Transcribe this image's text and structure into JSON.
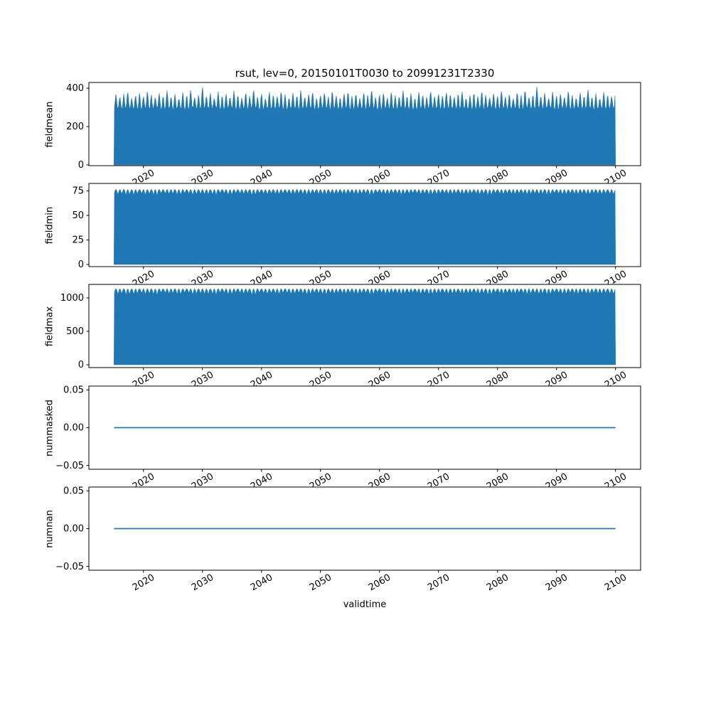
{
  "figure": {
    "title": "rsut, lev=0, 20150101T0030 to 20991231T2330",
    "xlabel": "validtime",
    "line_color": "#1f77b4",
    "frame_color": "#000000",
    "background": "#ffffff",
    "xlim": [
      2010.75,
      2104.25
    ],
    "x_start": 2015.0,
    "x_end": 2100.0,
    "x_ticks": [
      {
        "v": 2020,
        "label": "2020"
      },
      {
        "v": 2030,
        "label": "2030"
      },
      {
        "v": 2040,
        "label": "2040"
      },
      {
        "v": 2050,
        "label": "2050"
      },
      {
        "v": 2060,
        "label": "2060"
      },
      {
        "v": 2070,
        "label": "2070"
      },
      {
        "v": 2080,
        "label": "2080"
      },
      {
        "v": 2090,
        "label": "2090"
      },
      {
        "v": 2100,
        "label": "2100"
      }
    ]
  },
  "chart_data": [
    {
      "type": "area",
      "name": "fieldmean",
      "ylabel": "fieldmean",
      "ylim": [
        -4,
        430
      ],
      "yticks": [
        {
          "v": 0,
          "label": "0"
        },
        {
          "v": 200,
          "label": "200"
        },
        {
          "v": 400,
          "label": "400"
        }
      ],
      "fill_base": 0,
      "freq": 1.5,
      "shape": "spike",
      "sigma": 0.18,
      "annual_valleys": [
        288,
        293,
        284,
        296,
        287,
        291,
        282,
        295,
        289,
        285,
        297,
        290,
        283,
        292,
        288,
        286,
        294,
        287,
        282,
        291,
        295,
        284,
        289,
        293,
        285,
        297,
        287,
        283,
        290,
        296,
        288,
        284,
        293,
        289,
        286,
        298,
        287,
        283,
        292,
        290,
        285,
        296,
        288,
        282,
        289,
        294,
        287,
        285,
        291,
        297,
        288,
        283,
        290,
        295,
        285,
        289,
        293,
        284,
        296,
        287,
        284,
        291,
        294,
        286,
        288,
        297,
        287,
        283,
        290,
        292,
        288,
        284,
        292,
        295,
        286,
        289,
        281,
        293,
        290,
        285,
        296,
        288,
        291,
        284,
        294
      ],
      "annual_peaks": [
        368,
        355,
        372,
        381,
        349,
        363,
        377,
        358,
        385,
        366,
        352,
        374,
        361,
        388,
        357,
        370,
        346,
        379,
        364,
        391,
        353,
        367,
        408,
        359,
        376,
        348,
        383,
        362,
        371,
        354,
        387,
        365,
        350,
        378,
        360,
        392,
        356,
        373,
        347,
        381,
        366,
        358,
        384,
        369,
        351,
        375,
        362,
        389,
        355,
        368,
        380,
        349,
        364,
        377,
        357,
        386,
        361,
        352,
        372,
        383,
        359,
        370,
        348,
        379,
        365,
        390,
        354,
        367,
        376,
        351,
        382,
        363,
        357,
        388,
        360,
        374,
        350,
        380,
        366,
        355,
        385,
        358,
        371,
        362,
        378
      ]
    },
    {
      "type": "area",
      "name": "fieldmin",
      "ylabel": "fieldmin",
      "ylim": [
        -2.2,
        82.6
      ],
      "yticks": [
        {
          "v": 0,
          "label": "0"
        },
        {
          "v": 25,
          "label": "25"
        },
        {
          "v": 50,
          "label": "50"
        },
        {
          "v": 75,
          "label": "75"
        }
      ],
      "fill_base": 0,
      "freq": 1.5,
      "shape": "arch",
      "arch_q": 1.5,
      "top": 76.5,
      "annual_dips": [
        4.5,
        5.2,
        3.8,
        6.1,
        4.2,
        5.5,
        3.5,
        5.8,
        4.8,
        4.0,
        6.3,
        4.4,
        3.7,
        5.1,
        4.6,
        3.9,
        5.9,
        4.3,
        3.6,
        5.0,
        5.6,
        4.1,
        4.7,
        5.3,
        3.8,
        6.0,
        4.2,
        3.5,
        4.9,
        5.7,
        4.4,
        3.7,
        5.2,
        4.6,
        4.0,
        6.2,
        4.3,
        3.6,
        5.1,
        4.8,
        3.9,
        5.8,
        4.5,
        3.5,
        4.7,
        5.4,
        4.2,
        4.0,
        5.0,
        6.1,
        4.4,
        3.6,
        4.9,
        5.6,
        4.1,
        4.6,
        5.3,
        3.7,
        5.9,
        4.3,
        3.8,
        5.0,
        5.5,
        4.0,
        4.5,
        6.0,
        4.2,
        3.5,
        4.8,
        5.2,
        4.3,
        3.7,
        5.1,
        5.7,
        4.1,
        4.6,
        3.4,
        5.3,
        4.7,
        3.9,
        5.8,
        4.4,
        4.9,
        3.6,
        5.5
      ]
    },
    {
      "type": "area",
      "name": "fieldmax",
      "ylabel": "fieldmax",
      "ylim": [
        -42,
        1202
      ],
      "yticks": [
        {
          "v": 0,
          "label": "0"
        },
        {
          "v": 500,
          "label": "500"
        },
        {
          "v": 1000,
          "label": "1000"
        }
      ],
      "fill_base": 0,
      "freq": 1.5,
      "shape": "arch",
      "arch_q": 1.5,
      "top": 1138,
      "annual_dips": [
        72,
        85,
        58,
        98,
        66,
        89,
        52,
        93,
        76,
        62,
        101,
        70,
        55,
        82,
        74,
        60,
        95,
        68,
        54,
        80,
        90,
        64,
        75,
        86,
        58,
        97,
        66,
        52,
        78,
        92,
        70,
        55,
        84,
        74,
        62,
        100,
        68,
        54,
        82,
        76,
        60,
        94,
        72,
        52,
        75,
        87,
        66,
        62,
        80,
        98,
        70,
        54,
        78,
        90,
        64,
        74,
        86,
        56,
        96,
        68,
        58,
        80,
        88,
        62,
        72,
        97,
        66,
        52,
        77,
        84,
        68,
        56,
        82,
        92,
        64,
        74,
        50,
        86,
        76,
        60,
        94,
        70,
        78,
        55,
        89
      ]
    },
    {
      "type": "line",
      "name": "nummasked",
      "ylabel": "nummasked",
      "ylim": [
        -0.055,
        0.055
      ],
      "yticks": [
        {
          "v": 0.05,
          "label": "0.05"
        },
        {
          "v": 0,
          "label": "0.00"
        },
        {
          "v": -0.05,
          "label": "−0.05"
        }
      ],
      "value": 0.0
    },
    {
      "type": "line",
      "name": "numnan",
      "ylabel": "numnan",
      "ylim": [
        -0.055,
        0.055
      ],
      "yticks": [
        {
          "v": 0.05,
          "label": "0.05"
        },
        {
          "v": 0,
          "label": "0.00"
        },
        {
          "v": -0.05,
          "label": "−0.05"
        }
      ],
      "value": 0.0
    }
  ]
}
